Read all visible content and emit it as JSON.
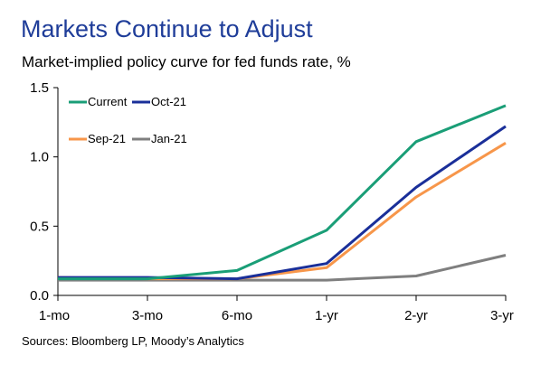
{
  "header": {
    "title": "Markets Continue to Adjust",
    "subtitle": "Market-implied policy curve for fed funds rate, %"
  },
  "footer": {
    "source": "Sources: Bloomberg LP, Moody’s Analytics"
  },
  "chart_data": {
    "type": "line",
    "title": "Markets Continue to Adjust",
    "subtitle": "Market-implied policy curve for fed funds rate, %",
    "categories": [
      "1-mo",
      "3-mo",
      "6-mo",
      "1-yr",
      "2-yr",
      "3-yr"
    ],
    "ylim": [
      0,
      1.5
    ],
    "yticks": [
      "0.0",
      "0.5",
      "1.0",
      "1.5"
    ],
    "grid": false,
    "legend_position": "top-left",
    "series": [
      {
        "name": "Current",
        "color": "#1a9e77",
        "values": [
          0.12,
          0.12,
          0.18,
          0.47,
          1.11,
          1.37
        ]
      },
      {
        "name": "Oct-21",
        "color": "#1a2f99",
        "values": [
          0.13,
          0.13,
          0.12,
          0.23,
          0.78,
          1.22
        ]
      },
      {
        "name": "Sep-21",
        "color": "#f7964a",
        "values": [
          0.13,
          0.12,
          0.12,
          0.2,
          0.71,
          1.1
        ]
      },
      {
        "name": "Jan-21",
        "color": "#7f7f7f",
        "values": [
          0.11,
          0.11,
          0.11,
          0.11,
          0.14,
          0.29
        ]
      }
    ]
  }
}
